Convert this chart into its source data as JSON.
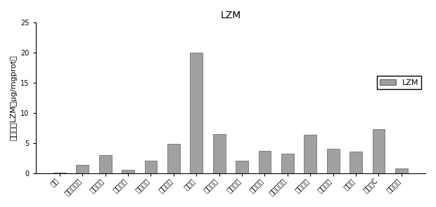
{
  "title": "LZM",
  "ylabel": "溶菌酶（LZM，μg/mgprot）",
  "categories": [
    "对照",
    "酵母葡多糖",
    "香菇多糖",
    "竹叶黄酮",
    "银耳多糖",
    "海带多糖",
    "黄木耳",
    "左旋咪唑",
    "黄芪多糖",
    "枯草多糖",
    "茶树菇多糖",
    "灵芝多糖",
    "云芝多糖",
    "甲壳素",
    "维生素C",
    "枸杞多糖"
  ],
  "values": [
    0.05,
    1.3,
    3.0,
    0.5,
    2.0,
    4.8,
    20.0,
    6.5,
    2.0,
    3.7,
    3.2,
    6.3,
    4.0,
    3.6,
    7.3,
    0.8
  ],
  "bar_color": "#a0a0a0",
  "bar_edge_color": "#606060",
  "ylim": [
    0,
    25
  ],
  "yticks": [
    0,
    5,
    10,
    15,
    20,
    25
  ],
  "legend_label": "LZM",
  "legend_box_color": "#a0a0a0",
  "background_color": "#ffffff",
  "title_fontsize": 10,
  "label_fontsize": 8,
  "tick_fontsize": 7,
  "bar_width": 0.55,
  "legend_fontsize": 8
}
